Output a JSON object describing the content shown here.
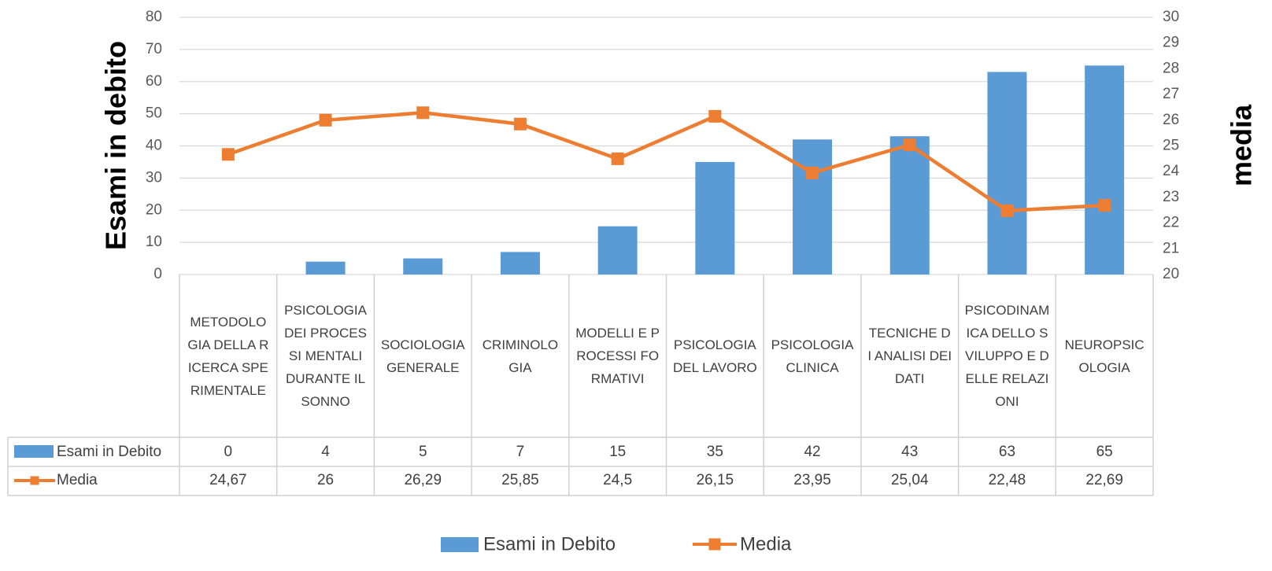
{
  "chart_data": {
    "type": "bar_line",
    "categories": [
      "METODOLOGIA DELLA RICERCA SPERIMENTALE",
      "PSICOLOGIA DEI PROCESSI MENTALI DURANTE IL SONNO",
      "SOCIOLOGIA GENERALE",
      "CRIMINOLOGIA",
      "MODELLI E PROCESSI FORMATIVI",
      "PSICOLOGIA DEL LAVORO",
      "PSICOLOGIA CLINICA",
      "TECNICHE DI ANALISI DEI DATI",
      "PSICODINAMICA DELLO SVILUPPO E DELLE RELAZIONI",
      "NEUROPSICOLOGIA"
    ],
    "series": [
      {
        "name": "Esami in Debito",
        "type": "bar",
        "color": "#5b9bd5",
        "values": [
          0,
          4,
          5,
          7,
          15,
          35,
          42,
          43,
          63,
          65
        ]
      },
      {
        "name": "Media",
        "type": "line",
        "color": "#ed7d31",
        "axis": "y2",
        "values": [
          24.67,
          26,
          26.29,
          25.85,
          24.5,
          26.15,
          23.95,
          25.04,
          22.48,
          22.69
        ],
        "value_labels": [
          "24,67",
          "26",
          "26,29",
          "25,85",
          "24,5",
          "26,15",
          "23,95",
          "25,04",
          "22,48",
          "22,69"
        ]
      }
    ],
    "ylabel": "Esami in debito",
    "y2label": "media",
    "ylim": [
      0,
      80
    ],
    "yticks": [
      0,
      10,
      20,
      30,
      40,
      50,
      60,
      70,
      80
    ],
    "y2lim": [
      20,
      30
    ],
    "y2ticks": [
      20,
      21,
      22,
      23,
      24,
      25,
      26,
      27,
      28,
      29,
      30
    ],
    "grid": true,
    "legend": "bottom",
    "data_table": true
  }
}
